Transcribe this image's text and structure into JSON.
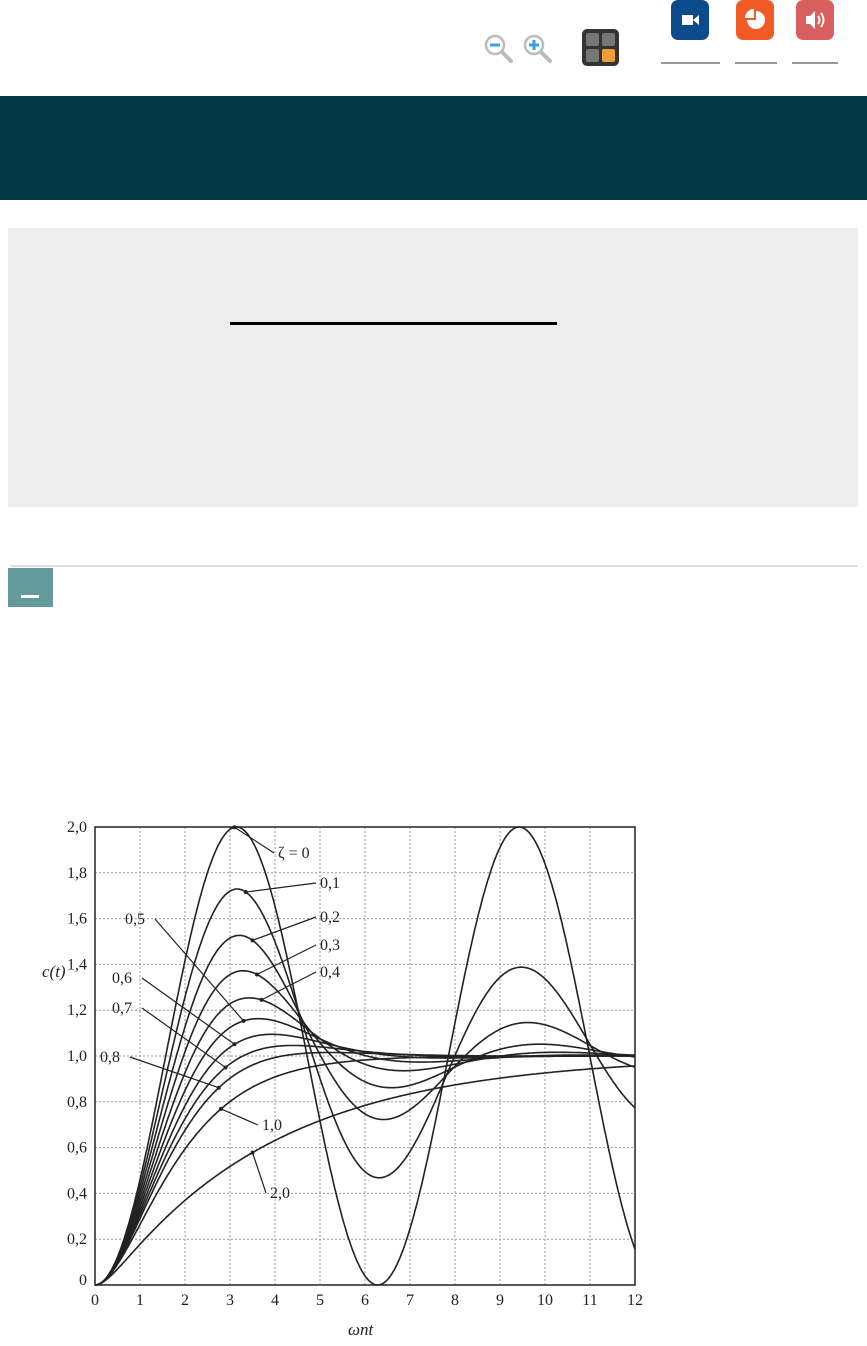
{
  "toolbar": {
    "zoom_out": "zoom-out-icon",
    "zoom_in": "zoom-in-icon",
    "calculator": "calculator-icon",
    "media": [
      {
        "icon": "video-camera-icon",
        "color": "#0b4b8c"
      },
      {
        "icon": "pie-chart-icon",
        "color": "#f05a24"
      },
      {
        "icon": "speaker-icon",
        "color": "#d95f5f"
      }
    ]
  },
  "colors": {
    "banner": "#033647",
    "panel": "#eeeeee",
    "collapse": "#659a9a"
  },
  "chart_data": {
    "type": "line",
    "xlabel": "ωnt",
    "ylabel": "c(t)",
    "xlim": [
      0,
      12
    ],
    "ylim": [
      0,
      2
    ],
    "xticks": [
      "0",
      "1",
      "2",
      "3",
      "4",
      "5",
      "6",
      "7",
      "8",
      "9",
      "10",
      "11",
      "12"
    ],
    "yticks": [
      "0",
      "0,2",
      "0,4",
      "0,6",
      "0,8",
      "1,0",
      "1,2",
      "1,4",
      "1,6",
      "1,8",
      "2,0"
    ],
    "grid": true,
    "series": [
      {
        "name": "ζ = 0",
        "zeta": 0
      },
      {
        "name": "0,1",
        "zeta": 0.1
      },
      {
        "name": "0,2",
        "zeta": 0.2
      },
      {
        "name": "0,3",
        "zeta": 0.3
      },
      {
        "name": "0,4",
        "zeta": 0.4
      },
      {
        "name": "0,5",
        "zeta": 0.5
      },
      {
        "name": "0,6",
        "zeta": 0.6
      },
      {
        "name": "0,7",
        "zeta": 0.7
      },
      {
        "name": "0,8",
        "zeta": 0.8
      },
      {
        "name": "1,0",
        "zeta": 1.0
      },
      {
        "name": "2,0",
        "zeta": 2.0
      }
    ]
  }
}
